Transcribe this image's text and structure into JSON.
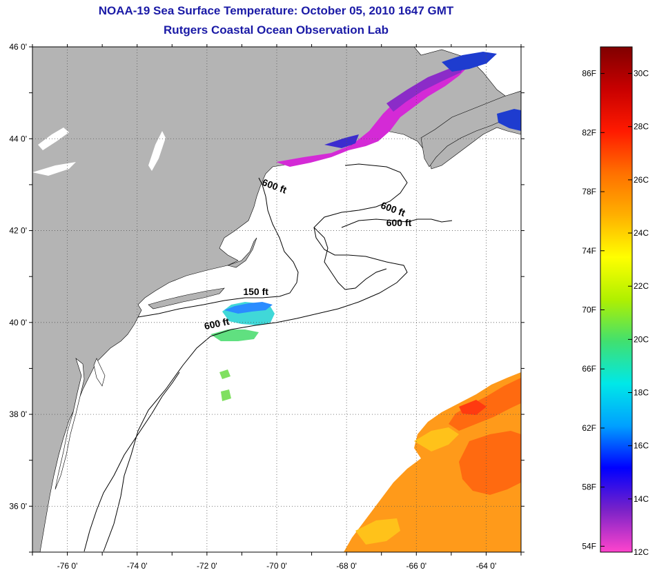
{
  "title": "NOAA-19 Sea Surface Temperature:  October 05, 2010 1647 GMT",
  "subtitle": "Rutgers Coastal Ocean Observation Lab",
  "map": {
    "lon_range": [
      -77,
      -63
    ],
    "lat_range": [
      35,
      46
    ],
    "x_ticks": [
      {
        "value": -76,
        "label": "-76 0'"
      },
      {
        "value": -74,
        "label": "-74 0'"
      },
      {
        "value": -72,
        "label": "-72 0'"
      },
      {
        "value": -70,
        "label": "-70 0'"
      },
      {
        "value": -68,
        "label": "-68 0'"
      },
      {
        "value": -66,
        "label": "-66 0'"
      },
      {
        "value": -64,
        "label": "-64 0'"
      }
    ],
    "y_ticks": [
      {
        "value": 46,
        "label": "46 0'"
      },
      {
        "value": 44,
        "label": "44 0'"
      },
      {
        "value": 42,
        "label": "42 0'"
      },
      {
        "value": 40,
        "label": "40 0'"
      },
      {
        "value": 38,
        "label": "38 0'"
      },
      {
        "value": 36,
        "label": "36 0'"
      }
    ],
    "grid": "dotted",
    "land_color": "#b4b4b4",
    "contour_labels": [
      {
        "text": "600 ft",
        "lon": -70.1,
        "lat": 42.9
      },
      {
        "text": "600 ft",
        "lon": -66.7,
        "lat": 42.4
      },
      {
        "text": "600 ft",
        "lon": -66.5,
        "lat": 42.1
      },
      {
        "text": "150 ft",
        "lon": -70.6,
        "lat": 40.6
      },
      {
        "text": "600 ft",
        "lon": -71.7,
        "lat": 39.9
      }
    ]
  },
  "colorbar": {
    "range_c": [
      12,
      31
    ],
    "range_f": [
      54,
      88
    ],
    "celsius_labels": [
      "30C",
      "28C",
      "26C",
      "24C",
      "22C",
      "20C",
      "18C",
      "16C",
      "14C",
      "12C"
    ],
    "fahrenheit_labels": [
      "86F",
      "82F",
      "78F",
      "74F",
      "70F",
      "66F",
      "62F",
      "58F",
      "54F"
    ],
    "stops": [
      "#ff44cc",
      "#7a22c8",
      "#0000ff",
      "#00a0ff",
      "#00e8e8",
      "#40e070",
      "#b0f000",
      "#ffff00",
      "#ffb000",
      "#ff7000",
      "#ff1a00",
      "#c80000",
      "#800000"
    ]
  }
}
